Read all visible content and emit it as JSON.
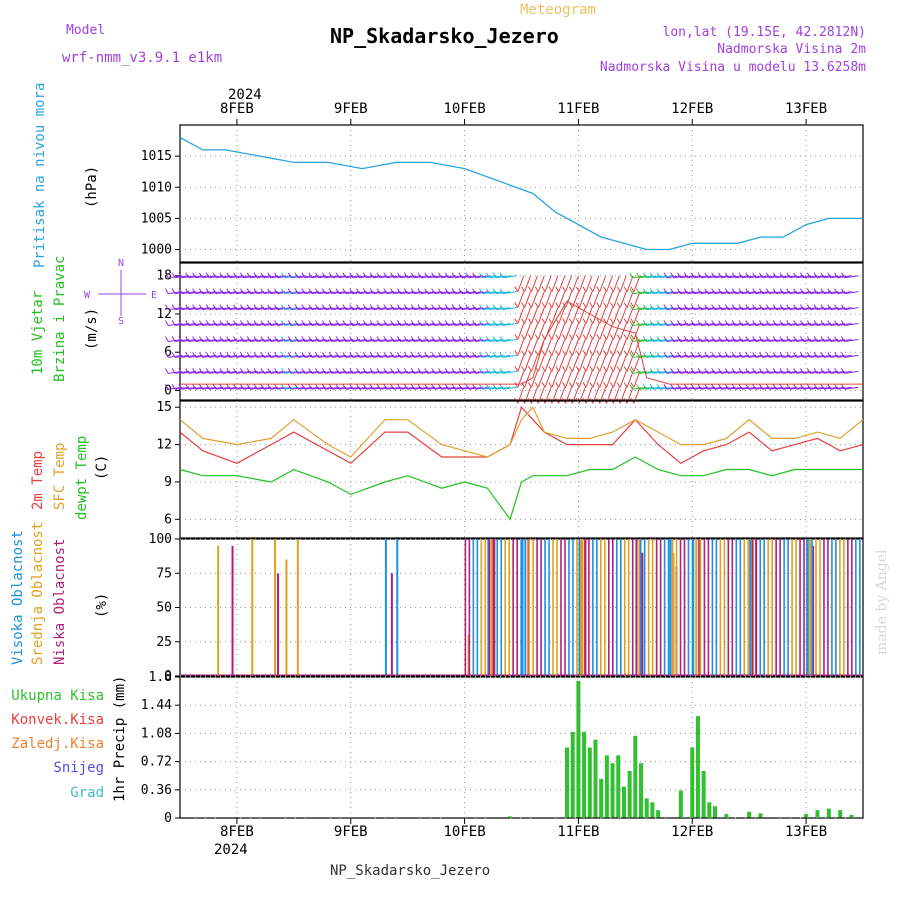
{
  "header": {
    "meteogram": "Meteogram",
    "title": "NP_Skadarsko_Jezero",
    "model_label": "Model",
    "model_name": "wrf-nmm_v3.9.1 e1km",
    "lonlat": "lon,lat (19.15E, 42.2812N)",
    "altitude": "Nadmorska Visina 2m",
    "model_altitude": "Nadmorska Visina u modelu 13.6258m"
  },
  "footer_station": "NP_Skadarsko_Jezero",
  "credit": "made by Angel",
  "time_axis": {
    "year": "2024",
    "days": [
      "8FEB",
      "9FEB",
      "10FEB",
      "11FEB",
      "12FEB",
      "13FEB"
    ],
    "start_day_offset": -0.5,
    "end_day_offset": 5.5
  },
  "compass": {
    "w": "W",
    "e": "E",
    "n": "N",
    "s": "S"
  },
  "colors": {
    "pressure": "#29a3e0",
    "t2m": "#e84040",
    "tsfc": "#e0a030",
    "dewpt": "#20c020",
    "cloud_high": "#1e90e0",
    "cloud_mid": "#e0a020",
    "cloud_low": "#b0207a",
    "precip_total": "#30c030",
    "precip_conv": "#e84040",
    "precip_frozen": "#f08030",
    "snow": "#5050e0",
    "hail": "#40c0c0",
    "wind_purple": "#8a2be2",
    "wind_cyan": "#20b8d8",
    "wind_yellow": "#e8d040",
    "wind_red": "#e04040",
    "wind_green": "#30c030"
  },
  "panels": {
    "pressure": {
      "labels": [
        "Pritisak na nivou mora",
        "(hPa)"
      ],
      "ticks": [
        "1000",
        "1005",
        "1010",
        "1015"
      ]
    },
    "wind": {
      "labels": [
        "10m Vjetar",
        "Brzina i Pravac",
        "(m/s)"
      ],
      "ticks": [
        "0",
        "6",
        "12",
        "18"
      ]
    },
    "temp": {
      "labels": [
        "2m Temp",
        "SFC Temp",
        "dewpt Temp",
        "(C)"
      ],
      "ticks": [
        "6",
        "9",
        "12",
        "15"
      ]
    },
    "cloud": {
      "labels": [
        "Visoka Oblacnost",
        "Srednja Oblacnost",
        "Niska Oblacnost",
        "(%)"
      ],
      "ticks": [
        "0",
        "25",
        "50",
        "75",
        "100"
      ]
    },
    "precip": {
      "labels": [
        "1hr Precip (mm)"
      ],
      "ticks": [
        "0",
        "0.36",
        "0.72",
        "1.08",
        "1.44",
        "1.8"
      ],
      "legend": [
        "Ukupna Kisa",
        "Konvek.Kisa",
        "Zaledj.Kisa",
        "Snijeg",
        "Grad"
      ]
    }
  },
  "chart_data": [
    {
      "type": "line",
      "title": "Pritisak na nivou mora",
      "ylabel": "(hPa)",
      "ylim": [
        998,
        1020
      ],
      "x": [
        -0.5,
        -0.3,
        -0.1,
        0.2,
        0.5,
        0.8,
        1.1,
        1.4,
        1.7,
        2.0,
        2.3,
        2.6,
        2.8,
        3.0,
        3.2,
        3.4,
        3.6,
        3.8,
        4.0,
        4.2,
        4.4,
        4.6,
        4.8,
        5.0,
        5.2,
        5.5
      ],
      "series": [
        {
          "values": [
            1018,
            1016,
            1016,
            1015,
            1014,
            1014,
            1013,
            1014,
            1014,
            1013,
            1011,
            1009,
            1006,
            1004,
            1002,
            1001,
            1000,
            1000,
            1001,
            1001,
            1001,
            1002,
            1002,
            1004,
            1005,
            1005
          ]
        }
      ]
    },
    {
      "type": "line",
      "title": "10m Vjetar",
      "ylabel": "(m/s)",
      "ylim": [
        -1.5,
        20
      ],
      "x": [
        -0.5,
        0,
        0.5,
        1,
        1.5,
        2,
        2.4,
        2.5,
        2.6,
        2.7,
        2.9,
        3.1,
        3.3,
        3.5,
        3.6,
        3.8,
        4,
        4.5,
        5,
        5.5
      ],
      "series": [
        {
          "values": [
            1,
            1,
            1,
            1,
            1,
            1,
            1,
            1,
            2,
            8,
            14,
            12,
            10,
            9,
            2,
            1,
            1,
            1,
            1,
            1
          ]
        }
      ]
    },
    {
      "type": "line",
      "title": "Temp",
      "ylabel": "(C)",
      "ylim": [
        4.5,
        15.5
      ],
      "x": [
        -0.5,
        -0.3,
        0,
        0.3,
        0.5,
        0.8,
        1,
        1.3,
        1.5,
        1.8,
        2,
        2.2,
        2.4,
        2.5,
        2.6,
        2.7,
        2.9,
        3.1,
        3.3,
        3.5,
        3.7,
        3.9,
        4.1,
        4.3,
        4.5,
        4.7,
        4.9,
        5.1,
        5.3,
        5.5
      ],
      "series": [
        {
          "values": [
            13,
            11.5,
            10.5,
            12,
            13,
            11.5,
            10.5,
            13,
            13,
            11,
            11,
            11,
            12,
            15,
            14,
            13,
            12,
            12,
            12,
            14,
            12,
            10.5,
            11.5,
            12,
            13,
            11.5,
            12,
            12.5,
            11.5,
            12
          ]
        },
        {
          "values": [
            14,
            12.5,
            12,
            12.5,
            14,
            12,
            11,
            14,
            14,
            12,
            11.5,
            11,
            12,
            14,
            15,
            13,
            12.5,
            12.5,
            13,
            14,
            13,
            12,
            12,
            12.5,
            14,
            12.5,
            12.5,
            13,
            12.5,
            14
          ]
        },
        {
          "values": [
            10,
            9.5,
            9.5,
            9,
            10,
            9,
            8,
            9,
            9.5,
            8.5,
            9,
            8.5,
            6,
            9,
            9.5,
            9.5,
            9.5,
            10,
            10,
            11,
            10,
            9.5,
            9.5,
            10,
            10,
            9.5,
            10,
            10,
            10,
            10
          ]
        }
      ]
    },
    {
      "type": "bar",
      "title": "Oblacnost",
      "ylabel": "(%)",
      "ylim": [
        0,
        100
      ],
      "x": [
        -0.2,
        -0.1,
        0.1,
        0.3,
        0.4,
        0.5,
        1.3,
        1.4,
        2.0,
        2.2,
        2.5,
        3.0,
        3.5,
        3.8,
        4.0,
        4.5,
        5.0
      ],
      "series": [
        {
          "values": [
            0,
            0,
            0,
            0,
            0,
            0,
            100,
            100,
            0,
            100,
            100,
            100,
            100,
            100,
            100,
            100,
            100
          ]
        },
        {
          "values": [
            95,
            0,
            100,
            100,
            85,
            100,
            0,
            0,
            30,
            100,
            100,
            100,
            100,
            90,
            100,
            100,
            100
          ]
        },
        {
          "values": [
            0,
            95,
            0,
            75,
            0,
            0,
            75,
            0,
            0,
            100,
            100,
            100,
            90,
            80,
            100,
            100,
            95
          ]
        }
      ]
    },
    {
      "type": "bar",
      "title": "1hr Precip",
      "ylabel": "1hr Precip (mm)",
      "ylim": [
        0,
        1.8
      ],
      "x": [
        2.4,
        2.9,
        2.95,
        3.0,
        3.05,
        3.1,
        3.15,
        3.2,
        3.25,
        3.3,
        3.35,
        3.4,
        3.45,
        3.5,
        3.55,
        3.6,
        3.65,
        3.7,
        3.9,
        4.0,
        4.05,
        4.1,
        4.15,
        4.2,
        4.3,
        4.5,
        4.6,
        5.0,
        5.1,
        5.2,
        5.3,
        5.4
      ],
      "series": [
        {
          "values": [
            0.02,
            0.9,
            1.1,
            1.75,
            1.1,
            0.9,
            1.0,
            0.5,
            0.8,
            0.7,
            0.8,
            0.4,
            0.6,
            1.05,
            0.7,
            0.25,
            0.2,
            0.1,
            0.35,
            0.9,
            1.3,
            0.6,
            0.2,
            0.15,
            0.05,
            0.08,
            0.06,
            0.05,
            0.1,
            0.12,
            0.1,
            0.04
          ]
        }
      ]
    }
  ]
}
